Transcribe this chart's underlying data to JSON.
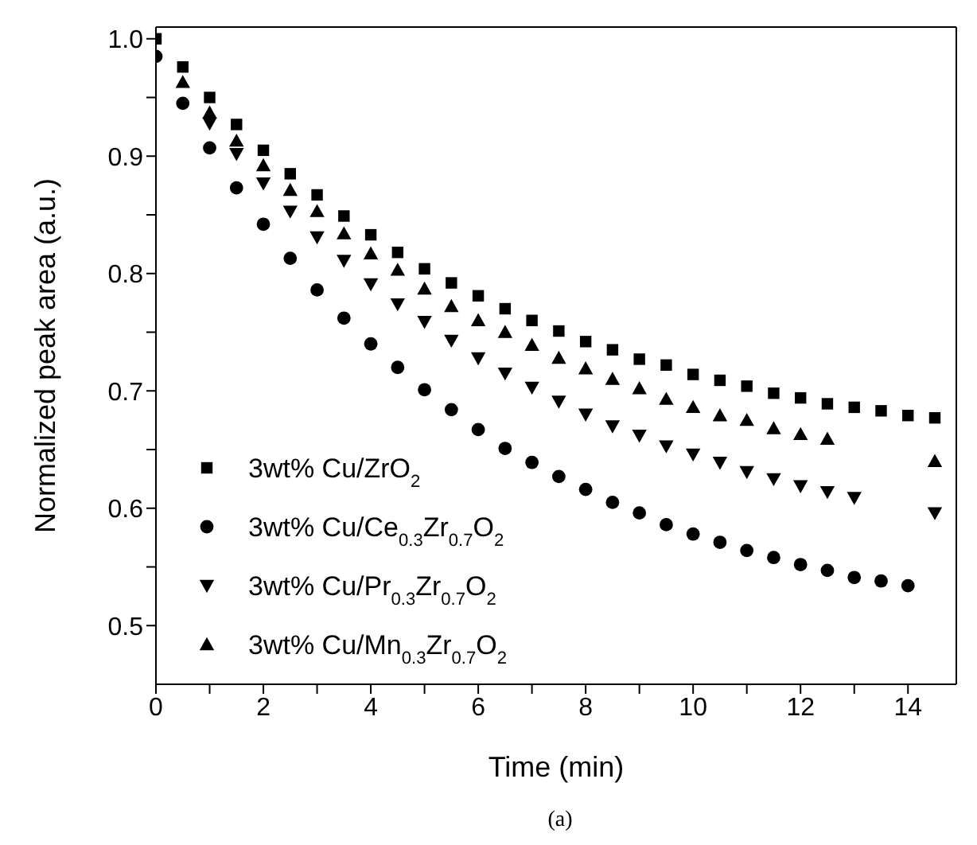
{
  "chart_data": {
    "type": "scatter",
    "xlabel": "Time (min)",
    "ylabel": "Normalized peak area (a.u.)",
    "annotations": [
      "(a)"
    ],
    "x": [
      0,
      0.5,
      1,
      1.5,
      2,
      2.5,
      3,
      3.5,
      4,
      4.5,
      5,
      5.5,
      6,
      6.5,
      7,
      7.5,
      8,
      8.5,
      9,
      9.5,
      10,
      10.5,
      11,
      11.5,
      12,
      12.5,
      13,
      13.5,
      14,
      14.5
    ],
    "series": [
      {
        "name": "3wt% Cu/ZrO$_{2}$",
        "color": "#000000",
        "marker": "square",
        "values": [
          1.0,
          0.976,
          0.95,
          0.927,
          0.905,
          0.885,
          0.867,
          0.849,
          0.833,
          0.818,
          0.804,
          0.792,
          0.781,
          0.77,
          0.76,
          0.751,
          0.742,
          0.735,
          0.727,
          0.722,
          0.714,
          0.709,
          0.704,
          0.698,
          0.694,
          0.689,
          0.686,
          0.683,
          0.679,
          0.677
        ]
      },
      {
        "name": "3wt% Cu/Ce$_{0.3}$Zr$_{0.7}$O$_{2}$",
        "color": "#000000",
        "marker": "circle",
        "values": [
          0.985,
          0.945,
          0.907,
          0.873,
          0.842,
          0.813,
          0.786,
          0.762,
          0.74,
          0.72,
          0.701,
          0.684,
          0.667,
          0.651,
          0.639,
          0.627,
          0.616,
          0.605,
          0.596,
          0.586,
          0.578,
          0.571,
          0.564,
          0.558,
          0.552,
          0.547,
          0.541,
          0.538,
          0.534,
          null
        ]
      },
      {
        "name": "3wt% Cu/Pr$_{0.3}$Zr$_{0.7}$O$_{2}$",
        "color": "#000000",
        "marker": "triangle-down",
        "values": [
          null,
          null,
          0.928,
          0.902,
          0.877,
          0.853,
          0.831,
          0.811,
          0.791,
          0.774,
          0.759,
          0.743,
          0.728,
          0.715,
          0.703,
          0.691,
          0.68,
          0.67,
          0.662,
          0.653,
          0.646,
          0.639,
          0.631,
          0.625,
          0.619,
          0.614,
          0.609,
          null,
          null,
          0.596
        ]
      },
      {
        "name": "3wt% Cu/Mn$_{0.3}$Zr$_{0.7}$O$_{2}$",
        "color": "#000000",
        "marker": "triangle",
        "values": [
          null,
          0.963,
          0.937,
          0.913,
          0.892,
          0.871,
          0.853,
          0.834,
          0.817,
          0.803,
          0.787,
          0.772,
          0.76,
          0.75,
          0.739,
          0.728,
          0.719,
          0.71,
          0.702,
          0.693,
          0.686,
          0.679,
          0.675,
          0.668,
          0.663,
          0.659,
          null,
          null,
          null,
          0.64
        ]
      }
    ],
    "xlim": [
      0,
      14.9
    ],
    "xticks": [
      0,
      {
        "value": 1,
        "label": null
      },
      2,
      {
        "value": 3,
        "label": null
      },
      4,
      {
        "value": 5,
        "label": null
      },
      6,
      {
        "value": 7,
        "label": null
      },
      8,
      {
        "value": 9,
        "label": null
      },
      10,
      {
        "value": 11,
        "label": null
      },
      12,
      {
        "value": 13,
        "label": null
      },
      14
    ],
    "ylim": [
      0.45,
      1.01
    ],
    "yticks": [
      0.5,
      {
        "value": 0.55,
        "label": null
      },
      0.6,
      {
        "value": 0.65,
        "label": null
      },
      0.7,
      {
        "value": 0.75,
        "label": null
      },
      0.8,
      {
        "value": 0.85,
        "label": null
      },
      0.9,
      {
        "value": 0.95,
        "label": null
      },
      {
        "value": 1.0,
        "label": "1.0"
      }
    ],
    "legend": "bottom left"
  }
}
